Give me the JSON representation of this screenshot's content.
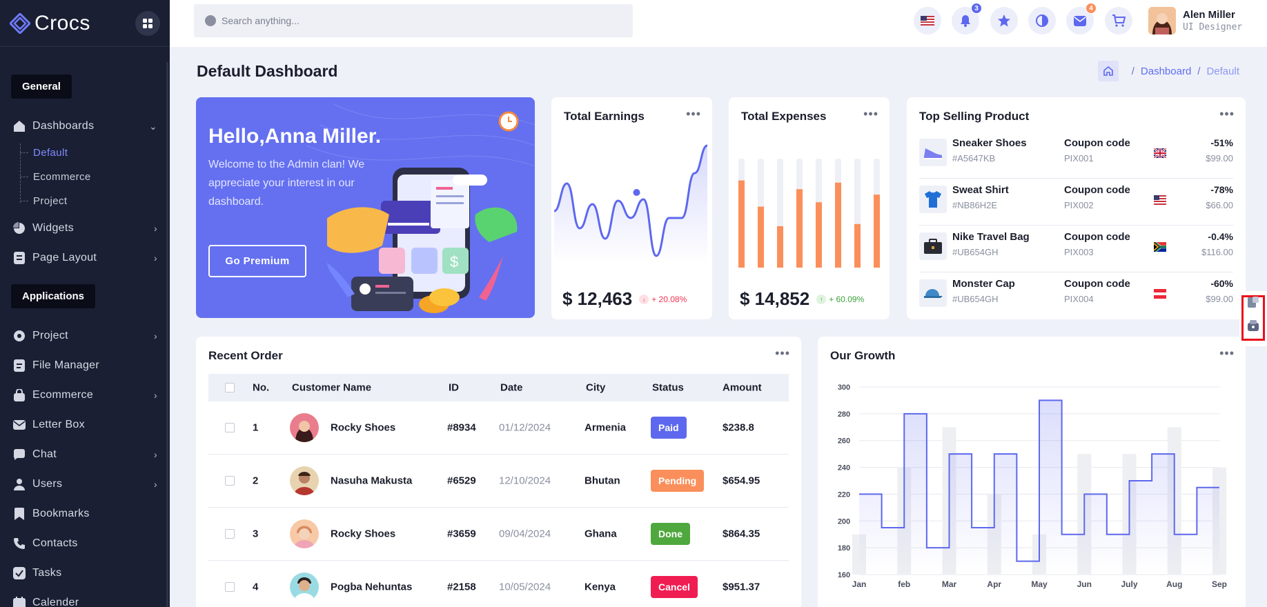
{
  "app": {
    "name": "Crocs"
  },
  "sidebar": {
    "sections": [
      "General",
      "Applications"
    ],
    "items": [
      {
        "label": "Dashboards",
        "icon": "home-icon",
        "chevron": "down"
      },
      {
        "label": "Widgets",
        "icon": "pie-icon",
        "chevron": "right"
      },
      {
        "label": "Page Layout",
        "icon": "layout-icon",
        "chevron": "right"
      },
      {
        "label": "Project",
        "icon": "project-icon",
        "chevron": "right"
      },
      {
        "label": "File Manager",
        "icon": "file-icon",
        "chevron": ""
      },
      {
        "label": "Ecommerce",
        "icon": "bag-icon",
        "chevron": "right"
      },
      {
        "label": "Letter Box",
        "icon": "mail-icon",
        "chevron": ""
      },
      {
        "label": "Chat",
        "icon": "chat-icon",
        "chevron": "right"
      },
      {
        "label": "Users",
        "icon": "user-icon",
        "chevron": "right"
      },
      {
        "label": "Bookmarks",
        "icon": "bookmark-icon",
        "chevron": ""
      },
      {
        "label": "Contacts",
        "icon": "phone-icon",
        "chevron": ""
      },
      {
        "label": "Tasks",
        "icon": "check-icon",
        "chevron": ""
      },
      {
        "label": "Calender",
        "icon": "calendar-icon",
        "chevron": ""
      }
    ],
    "dashboard_sub": [
      "Default",
      "Ecommerce",
      "Project"
    ],
    "active_sub": "Default"
  },
  "header": {
    "search_placeholder": "Search anything...",
    "notifications_count": "3",
    "messages_count": "4",
    "user_name": "Alen Miller",
    "user_role": "UI Designer"
  },
  "page": {
    "title": "Default Dashboard",
    "breadcrumb": [
      "Dashboard",
      "Default"
    ]
  },
  "welcome": {
    "greeting": "Hello,Anna Miller.",
    "message": "Welcome to the Admin clan! We appreciate your interest in our dashboard.",
    "button": "Go Premium"
  },
  "earnings": {
    "title": "Total Earnings",
    "value": "$ 12,463",
    "change": "+ 20.08%",
    "change_color": "#f0324f"
  },
  "expenses": {
    "title": "Total Expenses",
    "value": "$ 14,852",
    "change": "+ 60.09%",
    "change_color": "#3ca13c"
  },
  "top_products": {
    "title": "Top Selling Product",
    "coupon_label": "Coupon code",
    "items": [
      {
        "name": "Sneaker Shoes",
        "code": "#A5647KB",
        "coupon": "PIX001",
        "discount": "-51%",
        "price": "$99.00",
        "flag": "uk-flag-icon"
      },
      {
        "name": "Sweat Shirt",
        "code": "#NB86H2E",
        "coupon": "PIX002",
        "discount": "-78%",
        "price": "$66.00",
        "flag": "us-flag-icon"
      },
      {
        "name": "Nike Travel Bag",
        "code": "#UB654GH",
        "coupon": "PIX003",
        "discount": "-0.4%",
        "price": "$116.00",
        "flag": "za-flag-icon"
      },
      {
        "name": "Monster Cap",
        "code": "#UB654GH",
        "coupon": "PIX004",
        "discount": "-60%",
        "price": "$99.00",
        "flag": "at-flag-icon"
      }
    ]
  },
  "recent_orders": {
    "title": "Recent Order",
    "columns": [
      "No.",
      "Customer Name",
      "ID",
      "Date",
      "City",
      "Status",
      "Amount"
    ],
    "rows": [
      {
        "no": "1",
        "name": "Rocky Shoes",
        "id": "#8934",
        "date": "01/12/2024",
        "city": "Armenia",
        "status": "Paid",
        "status_color": "#5d68ee",
        "amount": "$238.8"
      },
      {
        "no": "2",
        "name": "Nasuha Makusta",
        "id": "#6529",
        "date": "12/10/2024",
        "city": "Bhutan",
        "status": "Pending",
        "status_color": "#fb8f5b",
        "amount": "$654.95"
      },
      {
        "no": "3",
        "name": "Rocky Shoes",
        "id": "#3659",
        "date": "09/04/2024",
        "city": "Ghana",
        "status": "Done",
        "status_color": "#4fa83d",
        "amount": "$864.35"
      },
      {
        "no": "4",
        "name": "Pogba Nehuntas",
        "id": "#2158",
        "date": "10/05/2024",
        "city": "Kenya",
        "status": "Cancel",
        "status_color": "#f01d52",
        "amount": "$951.37"
      }
    ]
  },
  "chart_data": [
    {
      "type": "line",
      "card": "Total Earnings",
      "values": [
        215,
        255,
        190,
        225,
        175,
        230,
        205,
        232,
        150,
        205,
        205,
        270,
        310
      ]
    },
    {
      "type": "bar",
      "card": "Total Expenses",
      "values": [
        80,
        56,
        38,
        72,
        60,
        78,
        40,
        67
      ],
      "max": 100
    },
    {
      "type": "area",
      "title": "Our Growth",
      "categories": [
        "Jan",
        "feb",
        "Mar",
        "Apr",
        "May",
        "Jun",
        "July",
        "Aug",
        "Sep"
      ],
      "ylim": [
        160,
        300
      ],
      "yticks": [
        160,
        180,
        200,
        220,
        240,
        260,
        280,
        300
      ],
      "line": [
        220,
        195,
        280,
        180,
        250,
        195,
        250,
        170,
        290,
        190,
        220,
        190,
        230,
        250,
        190,
        225
      ],
      "background_bars": [
        190,
        240,
        270,
        220,
        190,
        250,
        250,
        270,
        240
      ],
      "accent": "#5d68ee"
    }
  ]
}
